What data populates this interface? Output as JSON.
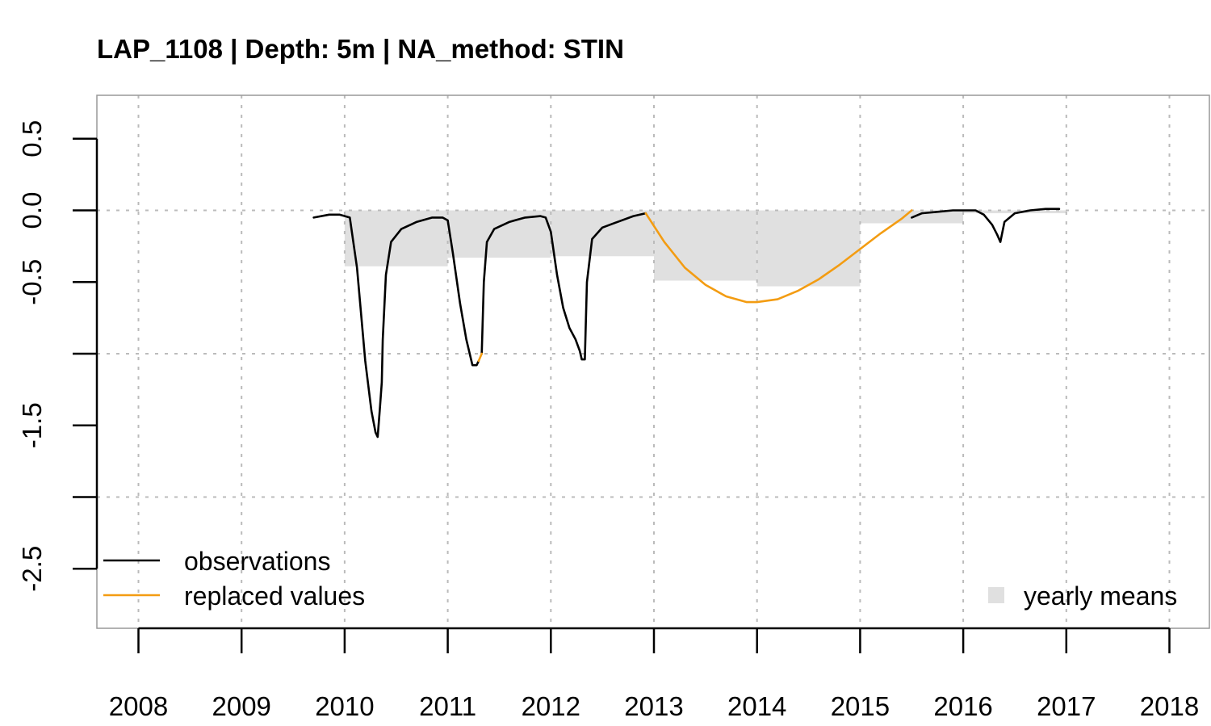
{
  "chart_data": {
    "type": "line",
    "title": "LAP_1108 | Depth: 5m | NA_method: STIN",
    "xlabel": "",
    "ylabel": "",
    "xlim": [
      2007.6,
      2018.4
    ],
    "ylim": [
      -2.9,
      0.8
    ],
    "x_ticks": [
      2008,
      2009,
      2010,
      2011,
      2012,
      2013,
      2014,
      2015,
      2016,
      2017,
      2018
    ],
    "x_tick_labels": [
      "2008",
      "2009",
      "2010",
      "2011",
      "2012",
      "2013",
      "2014",
      "2015",
      "2016",
      "2017",
      "2018"
    ],
    "y_ticks": [
      0.5,
      0.0,
      -0.5,
      -1.0,
      -1.5,
      -2.0,
      -2.5
    ],
    "y_tick_labels": [
      "0.5",
      "0.0",
      "-0.5",
      "",
      "-1.5",
      "",
      "-2.5"
    ],
    "grid": true,
    "colors": {
      "observations": "#000000",
      "replaced": "#f39c12",
      "yearly_means": "#e0e0e0",
      "grid": "#bbbbbb",
      "frame": "#999999"
    },
    "yearly_means": {
      "name": "yearly means",
      "years": [
        2010,
        2011,
        2012,
        2013,
        2014,
        2015,
        2016
      ],
      "values": [
        -0.39,
        -0.33,
        -0.32,
        -0.49,
        -0.53,
        -0.09,
        -0.02
      ]
    },
    "series": [
      {
        "name": "observations",
        "role": "observed",
        "segments": [
          [
            [
              2009.7,
              -0.05
            ],
            [
              2009.85,
              -0.03
            ],
            [
              2009.95,
              -0.03
            ],
            [
              2010.05,
              -0.05
            ],
            [
              2010.12,
              -0.4
            ],
            [
              2010.2,
              -1.05
            ],
            [
              2010.26,
              -1.4
            ],
            [
              2010.3,
              -1.55
            ],
            [
              2010.32,
              -1.58
            ],
            [
              2010.34,
              -1.4
            ],
            [
              2010.36,
              -1.2
            ],
            [
              2010.37,
              -0.9
            ],
            [
              2010.4,
              -0.45
            ],
            [
              2010.45,
              -0.22
            ],
            [
              2010.55,
              -0.13
            ],
            [
              2010.7,
              -0.08
            ],
            [
              2010.85,
              -0.05
            ],
            [
              2010.95,
              -0.05
            ],
            [
              2011.0,
              -0.07
            ],
            [
              2011.05,
              -0.3
            ],
            [
              2011.12,
              -0.65
            ],
            [
              2011.18,
              -0.9
            ],
            [
              2011.24,
              -1.08
            ],
            [
              2011.28,
              -1.08
            ],
            [
              2011.3,
              -1.05
            ]
          ],
          [
            [
              2011.33,
              -1.0
            ],
            [
              2011.35,
              -0.5
            ],
            [
              2011.38,
              -0.22
            ],
            [
              2011.45,
              -0.13
            ],
            [
              2011.6,
              -0.08
            ],
            [
              2011.75,
              -0.05
            ],
            [
              2011.9,
              -0.04
            ],
            [
              2011.95,
              -0.05
            ],
            [
              2012.0,
              -0.15
            ],
            [
              2012.06,
              -0.45
            ],
            [
              2012.12,
              -0.68
            ],
            [
              2012.18,
              -0.82
            ],
            [
              2012.24,
              -0.9
            ],
            [
              2012.28,
              -0.98
            ],
            [
              2012.3,
              -1.04
            ],
            [
              2012.33,
              -1.04
            ],
            [
              2012.35,
              -0.5
            ],
            [
              2012.4,
              -0.2
            ],
            [
              2012.5,
              -0.12
            ],
            [
              2012.65,
              -0.08
            ],
            [
              2012.8,
              -0.04
            ],
            [
              2012.92,
              -0.02
            ]
          ],
          [
            [
              2015.5,
              -0.05
            ],
            [
              2015.6,
              -0.02
            ],
            [
              2015.75,
              -0.01
            ],
            [
              2015.9,
              0.0
            ],
            [
              2016.0,
              0.0
            ],
            [
              2016.12,
              0.0
            ],
            [
              2016.2,
              -0.03
            ],
            [
              2016.28,
              -0.1
            ],
            [
              2016.33,
              -0.17
            ],
            [
              2016.36,
              -0.22
            ],
            [
              2016.4,
              -0.08
            ],
            [
              2016.5,
              -0.02
            ],
            [
              2016.65,
              0.0
            ],
            [
              2016.8,
              0.01
            ],
            [
              2016.93,
              0.01
            ]
          ]
        ]
      },
      {
        "name": "replaced values",
        "role": "replaced",
        "segments": [
          [
            [
              2011.3,
              -1.05
            ],
            [
              2011.33,
              -1.0
            ]
          ],
          [
            [
              2012.92,
              -0.02
            ],
            [
              2013.1,
              -0.22
            ],
            [
              2013.3,
              -0.4
            ],
            [
              2013.5,
              -0.52
            ],
            [
              2013.7,
              -0.6
            ],
            [
              2013.9,
              -0.64
            ],
            [
              2014.0,
              -0.64
            ],
            [
              2014.2,
              -0.62
            ],
            [
              2014.4,
              -0.56
            ],
            [
              2014.6,
              -0.48
            ],
            [
              2014.8,
              -0.38
            ],
            [
              2015.0,
              -0.27
            ],
            [
              2015.2,
              -0.16
            ],
            [
              2015.4,
              -0.06
            ],
            [
              2015.5,
              0.0
            ]
          ]
        ]
      }
    ],
    "legend": {
      "entries": [
        "observations",
        "replaced values"
      ],
      "position": "bottom-left",
      "means_label": "yearly means",
      "means_position": "bottom-right"
    }
  }
}
